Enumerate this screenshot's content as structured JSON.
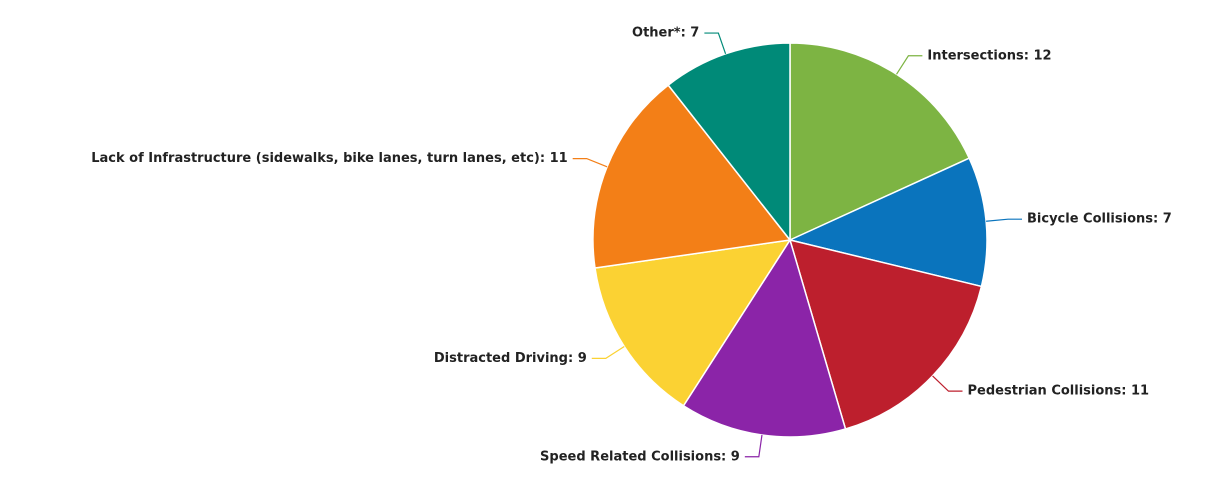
{
  "chart_data": {
    "type": "pie",
    "value_labels": [
      "Intersections: 12",
      "Bicycle Collisions: 7",
      "Pedestrian Collisions: 11",
      "Speed Related Collisions: 9",
      "Distracted Driving: 9",
      "Lack of Infrastructure (sidewalks, bike lanes, turn lanes, etc): 11",
      "Other*: 7"
    ],
    "values": [
      12,
      7,
      11,
      9,
      9,
      11,
      7
    ],
    "colors": [
      "#7db443",
      "#0a74bd",
      "#bd1f2d",
      "#8b24a8",
      "#fbd233",
      "#f37f17",
      "#008a78"
    ]
  }
}
